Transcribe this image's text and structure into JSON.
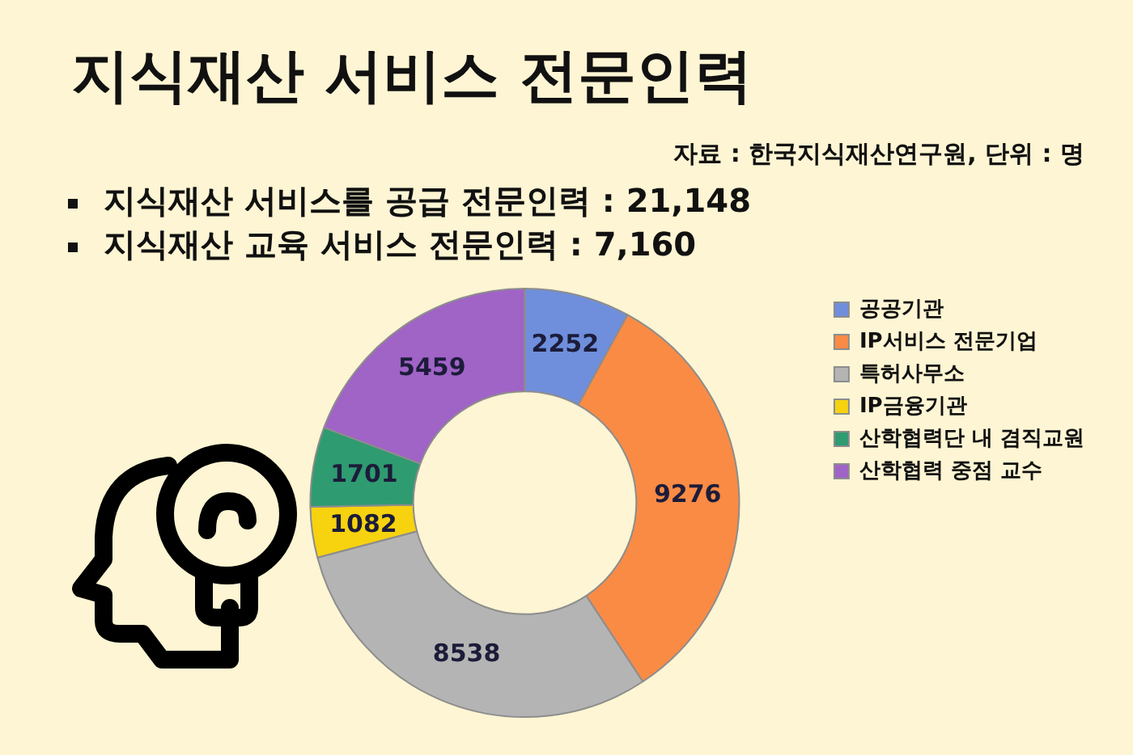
{
  "chart_data": {
    "type": "donut",
    "title": "지식재산 서비스 전문인력",
    "annotations": [
      "자료 : 한국지식재산연구원, 단위 : 명",
      "지식재산 서비스를 공급 전문인력 : 21,148",
      "지식재산 교육 서비스 전문인력 : 7,160"
    ],
    "categories": [
      "공공기관",
      "IP서비스 전문기업",
      "특허사무소",
      "IP금융기관",
      "산학협력단 내 겸직교원",
      "산학협력 중점 교수"
    ],
    "values": [
      2252,
      9276,
      8538,
      1082,
      1701,
      5459
    ],
    "colors": [
      "#6f8fdc",
      "#f98b45",
      "#b4b4b4",
      "#f6d20f",
      "#2f9b70",
      "#a063c6"
    ],
    "legend": "right",
    "data_labels": true
  }
}
